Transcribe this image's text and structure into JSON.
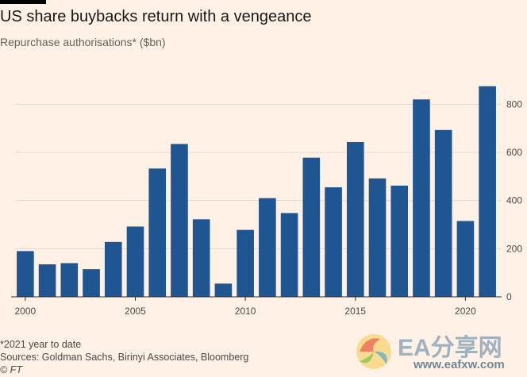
{
  "header": {
    "title": "US share buybacks return with a vengeance",
    "subtitle": "Repurchase authorisations* ($bn)"
  },
  "footer": {
    "note": "*2021 year to date",
    "sources": "Sources: Goldman Sachs, Birinyi Associates, Bloomberg",
    "credit": "© FT"
  },
  "watermark": {
    "text": "EA分享网",
    "url": "www.eafxw.com",
    "logo_icon": "swirl-logo-icon"
  },
  "colors": {
    "background": "#fff1e5",
    "bar": "#1f5591",
    "grid": "#e6d9ce",
    "axis": "#33302e"
  },
  "chart_data": {
    "type": "bar",
    "title": "US share buybacks return with a vengeance",
    "subtitle": "Repurchase authorisations* ($bn)",
    "xlabel": "",
    "ylabel": "",
    "categories": [
      "2000",
      "2001",
      "2002",
      "2003",
      "2004",
      "2005",
      "2006",
      "2007",
      "2008",
      "2009",
      "2010",
      "2011",
      "2012",
      "2013",
      "2014",
      "2015",
      "2016",
      "2017",
      "2018",
      "2019",
      "2020",
      "2021"
    ],
    "values": [
      190,
      135,
      140,
      115,
      228,
      292,
      533,
      635,
      322,
      55,
      278,
      410,
      348,
      578,
      455,
      643,
      492,
      462,
      820,
      693,
      315,
      875
    ],
    "ylim": [
      0,
      900
    ],
    "yticks": [
      0,
      200,
      400,
      600,
      800
    ],
    "ytick_labels": [
      "0",
      "200",
      "400",
      "600",
      "800"
    ],
    "xticks": [
      "2000",
      "2005",
      "2010",
      "2015",
      "2020"
    ],
    "y_axis_side": "right",
    "grid": true
  }
}
